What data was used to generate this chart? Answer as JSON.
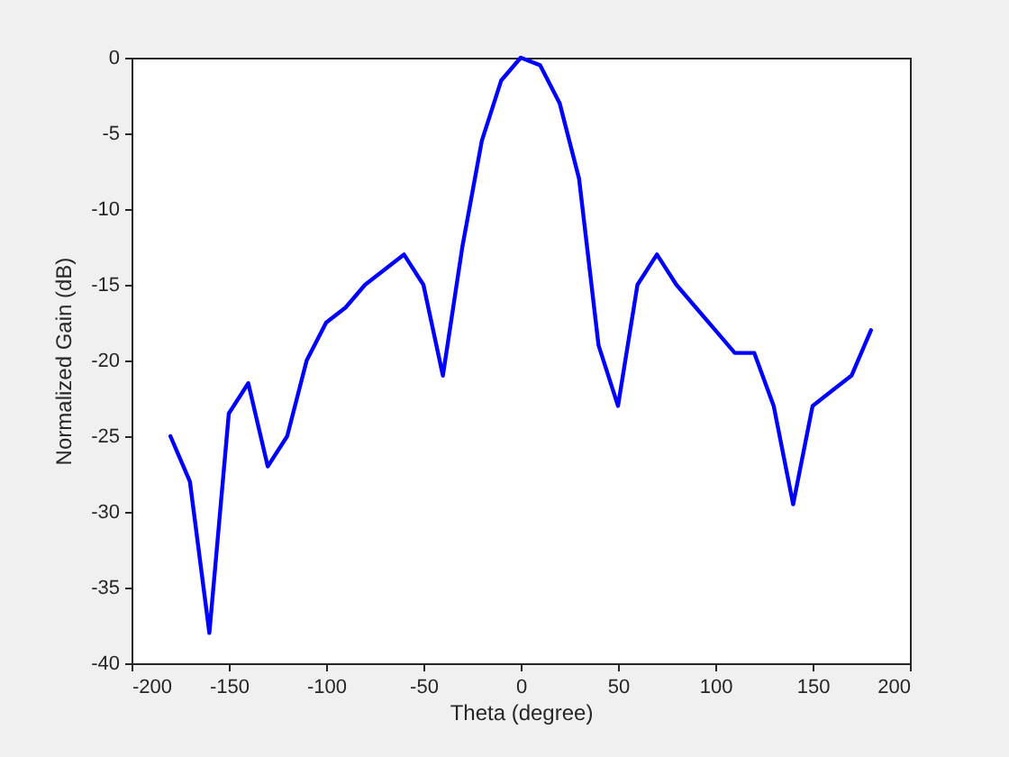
{
  "chart_data": {
    "type": "line",
    "xlabel": "Theta (degree)",
    "ylabel": "Normalized Gain (dB)",
    "x": [
      -180,
      -170,
      -160,
      -150,
      -140,
      -130,
      -120,
      -110,
      -100,
      -90,
      -80,
      -70,
      -60,
      -50,
      -40,
      -30,
      -20,
      -10,
      0,
      10,
      20,
      30,
      40,
      50,
      60,
      70,
      80,
      90,
      100,
      110,
      120,
      130,
      140,
      150,
      160,
      170,
      180
    ],
    "series": [
      {
        "color": "#0000ff",
        "values": [
          -25,
          -28,
          -38,
          -23.5,
          -21.5,
          -27,
          -25,
          -20,
          -17.5,
          -16.5,
          -15,
          -14,
          -13,
          -15,
          -21,
          -12.5,
          -5.5,
          -1.5,
          0,
          -0.5,
          -3,
          -8,
          -19,
          -23,
          -15,
          -13,
          -15,
          -16.5,
          -18,
          -19.5,
          -19.5,
          -23,
          -29.5,
          -23,
          -22,
          -21,
          -18
        ]
      }
    ],
    "xlim": [
      -200,
      200
    ],
    "xticks": [
      -200,
      -150,
      -100,
      -50,
      0,
      50,
      100,
      150,
      200
    ],
    "ylim": [
      -40,
      0
    ],
    "yticks": [
      -40,
      -35,
      -30,
      -25,
      -20,
      -15,
      -10,
      -5,
      0
    ],
    "line_style": "solid"
  }
}
